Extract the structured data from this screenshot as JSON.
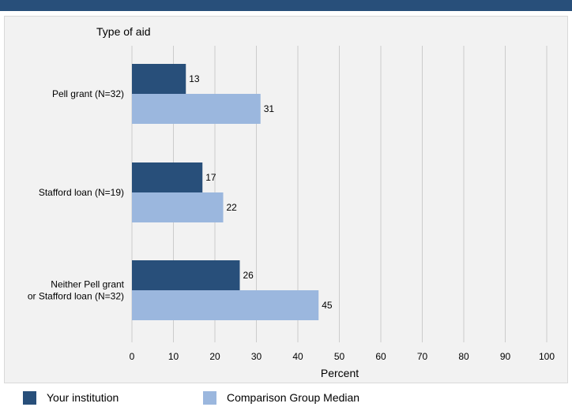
{
  "colors": {
    "band": "#284f7a",
    "series_primary": "#284f7a",
    "series_secondary": "#9bb7de",
    "grid": "#cccccc",
    "panel": "#f2f2f2"
  },
  "chart_data": {
    "type": "bar",
    "orientation": "horizontal",
    "title": "",
    "ylabel": "Type of aid",
    "xlabel": "Percent",
    "xlim": [
      0,
      100
    ],
    "xticks": [
      0,
      10,
      20,
      30,
      40,
      50,
      60,
      70,
      80,
      90,
      100
    ],
    "grid": true,
    "legend_position": "bottom",
    "categories": [
      [
        "Pell grant  (N=32)"
      ],
      [
        "Stafford loan (N=19)"
      ],
      [
        "Neither Pell grant",
        "or Stafford loan (N=32)"
      ]
    ],
    "series": [
      {
        "name": "Your institution",
        "values": [
          13,
          17,
          26
        ]
      },
      {
        "name": "Comparison Group Median",
        "values": [
          31,
          22,
          45
        ]
      }
    ]
  }
}
